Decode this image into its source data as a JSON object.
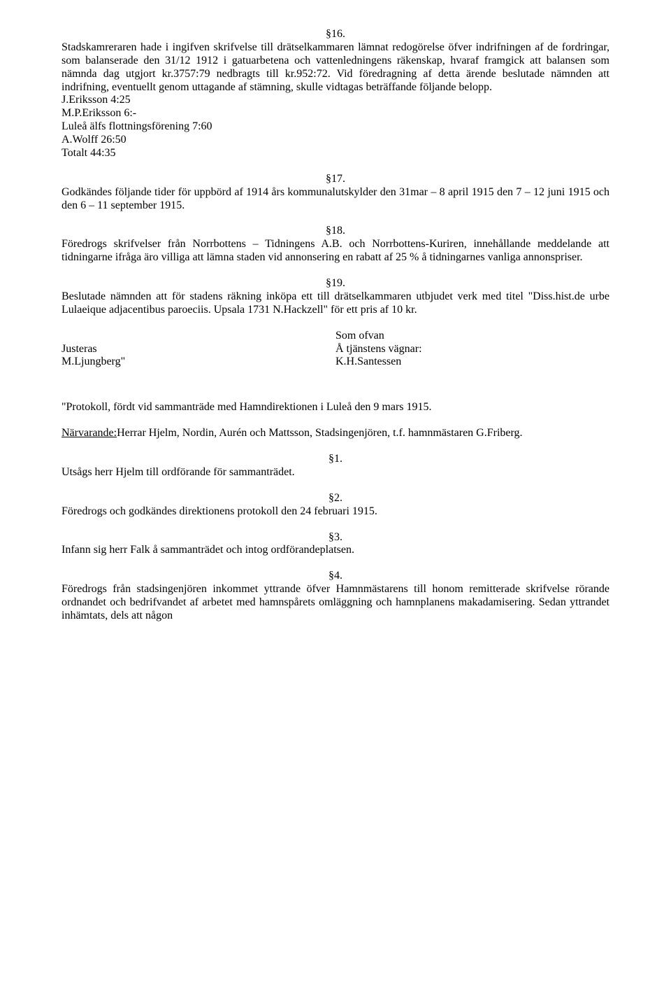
{
  "s16": {
    "num": "§16.",
    "para": "Stadskamreraren hade i ingifven skrifvelse till drätselkammaren lämnat redogörelse öfver indrifningen af de fordringar, som balanserade den 31/12 1912 i gatuarbetena och vattenledningens räkenskap, hvaraf framgick att balansen som nämnda dag utgjort kr.3757:79 nedbragts till kr.952:72. Vid föredragning af detta ärende beslutade nämnden att indrifning, eventuellt genom uttagande af stämning, skulle vidtagas beträffande följande belopp.",
    "l1": "J.Eriksson 4:25",
    "l2": "M.P.Eriksson 6:-",
    "l3": "Luleå älfs flottningsförening 7:60",
    "l4": "A.Wolff   26:50",
    "l5": "Totalt 44:35"
  },
  "s17": {
    "num": "§17.",
    "para": "Godkändes följande tider för uppbörd af 1914 års kommunalutskylder den 31mar – 8  april 1915 den 7 – 12 juni 1915 och den 6 – 11 september 1915."
  },
  "s18": {
    "num": "§18.",
    "para": "Föredrogs skrifvelser från Norrbottens – Tidningens A.B. och Norrbottens-Kuriren, innehållande meddelande att tidningarne ifråga äro villiga att lämna staden vid annonsering en rabatt af 25 % å tidningarnes vanliga annonspriser."
  },
  "s19": {
    "num": "§19.",
    "para": "Beslutade nämnden att för stadens räkning inköpa ett till drätselkammaren utbjudet verk med titel \"Diss.hist.de urbe Lulaeique adjacentibus paroeciis. Upsala 1731 N.Hackzell\" för ett pris af 10 kr."
  },
  "sig1": {
    "r1": "Som ofvan",
    "l1": "Justeras",
    "r2": "Å tjänstens vägnar:",
    "l2": "M.Ljungberg\"",
    "r3": "K.H.Santessen"
  },
  "proto": {
    "title": "\"Protokoll, fördt vid sammanträde med Hamndirektionen i Luleå den 9 mars 1915.",
    "narv_label": "Närvarande:",
    "narv_rest": "Herrar Hjelm, Nordin, Aurén och Mattsson, Stadsingenjören, t.f. hamnmästaren G.Friberg."
  },
  "p1": {
    "num": "§1.",
    "para": "Utsågs herr Hjelm till ordförande för sammanträdet."
  },
  "p2": {
    "num": "§2.",
    "para": "Föredrogs och godkändes direktionens protokoll den 24 februari 1915."
  },
  "p3": {
    "num": "§3.",
    "para": "Infann sig herr Falk å sammanträdet och intog ordförandeplatsen."
  },
  "p4": {
    "num": "§4.",
    "para": "Föredrogs från stadsingenjören inkommet yttrande öfver Hamnmästarens till honom remitterade skrifvelse rörande ordnandet och bedrifvandet af arbetet med hamnspårets omläggning och hamnplanens makadamisering. Sedan yttrandet inhämtats, dels att någon"
  }
}
